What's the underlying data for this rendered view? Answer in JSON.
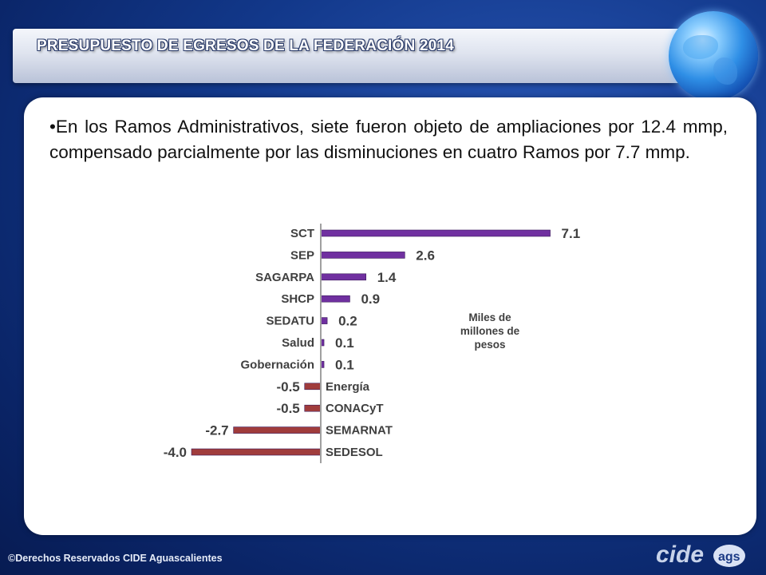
{
  "header": {
    "title": "PRESUPUESTO DE EGRESOS DE LA FEDERACIÓN 2014"
  },
  "body": {
    "paragraph": "•En los Ramos Administrativos, siete fueron objeto de ampliaciones por 12.4 mmp, compensado parcialmente por las disminuciones en cuatro Ramos por 7.7 mmp."
  },
  "chart_data": {
    "type": "bar",
    "orientation": "horizontal",
    "categories": [
      "SCT",
      "SEP",
      "SAGARPA",
      "SHCP",
      "SEDATU",
      "Salud",
      "Gobernación",
      "Energía",
      "CONACyT",
      "SEMARNAT",
      "SEDESOL"
    ],
    "values": [
      7.1,
      2.6,
      1.4,
      0.9,
      0.2,
      0.1,
      0.1,
      -0.5,
      -0.5,
      -2.7,
      -4.0
    ],
    "value_labels": [
      "7.1",
      "2.6",
      "1.4",
      "0.9",
      "0.2",
      "0.1",
      "0.1",
      "-0.5",
      "-0.5",
      "-2.7",
      "-4.0"
    ],
    "unit_label": "Miles de millones de pesos",
    "xlim": [
      -4.0,
      7.1
    ],
    "grid": false,
    "colors": {
      "positive": "#7030a0",
      "negative": "#a03c3c"
    }
  },
  "footer": {
    "copyright": "©Derechos Reservados CIDE Aguascalientes",
    "logo_text": "cide",
    "logo_small": "ags"
  },
  "colors": {
    "background": "#12388a",
    "panel": "#ffffff"
  }
}
